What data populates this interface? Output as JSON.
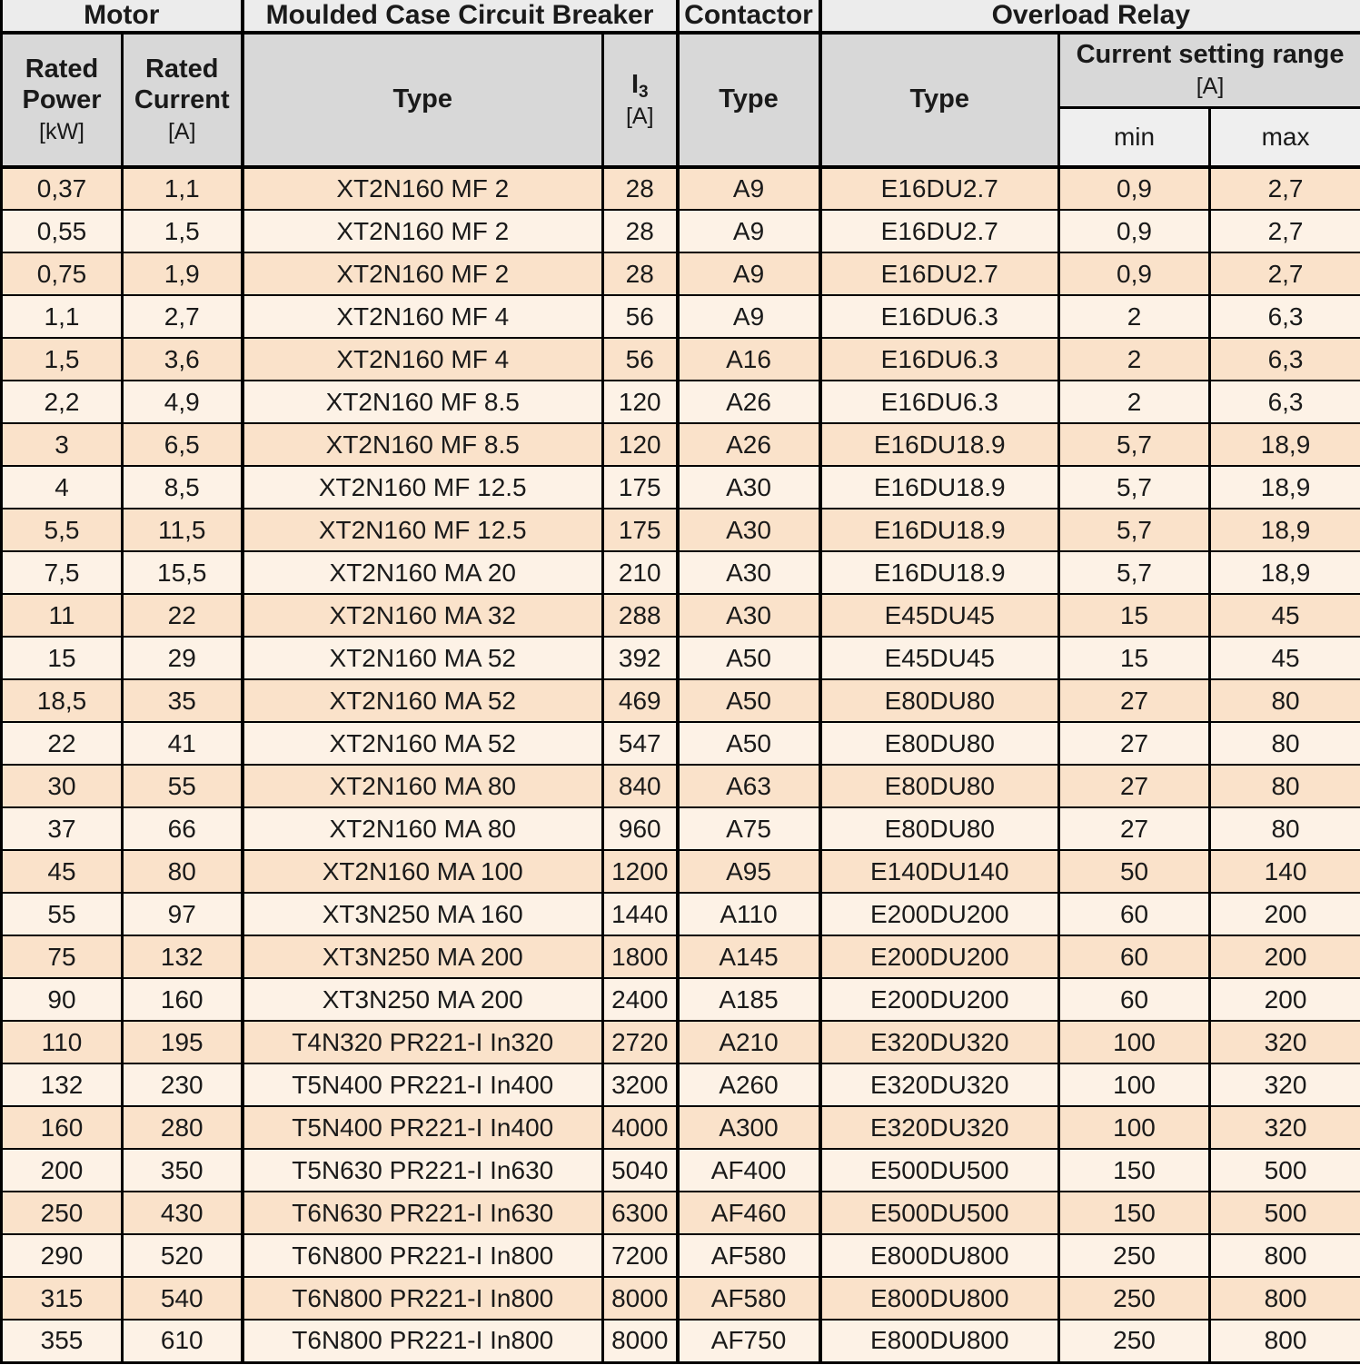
{
  "header": {
    "groups": [
      {
        "label": "Motor"
      },
      {
        "label": "Moulded Case Circuit Breaker"
      },
      {
        "label": "Contactor"
      },
      {
        "label": "Overload Relay"
      }
    ],
    "columns": {
      "rated_power": {
        "title": "Rated Power",
        "unit": "[kW]"
      },
      "rated_current": {
        "title": "Rated Current",
        "unit": "[A]"
      },
      "mccb_type": {
        "title": "Type"
      },
      "i3": {
        "symbol": "I",
        "sub": "3",
        "unit": "[A]"
      },
      "contactor_type": {
        "title": "Type"
      },
      "relay_type": {
        "title": "Type"
      },
      "current_setting": {
        "title": "Current setting range",
        "unit": "[A]",
        "min": "min",
        "max": "max"
      }
    }
  },
  "table": {
    "rows": [
      [
        "0,37",
        "1,1",
        "XT2N160 MF 2",
        "28",
        "A9",
        "E16DU2.7",
        "0,9",
        "2,7"
      ],
      [
        "0,55",
        "1,5",
        "XT2N160 MF 2",
        "28",
        "A9",
        "E16DU2.7",
        "0,9",
        "2,7"
      ],
      [
        "0,75",
        "1,9",
        "XT2N160 MF 2",
        "28",
        "A9",
        "E16DU2.7",
        "0,9",
        "2,7"
      ],
      [
        "1,1",
        "2,7",
        "XT2N160 MF 4",
        "56",
        "A9",
        "E16DU6.3",
        "2",
        "6,3"
      ],
      [
        "1,5",
        "3,6",
        "XT2N160 MF 4",
        "56",
        "A16",
        "E16DU6.3",
        "2",
        "6,3"
      ],
      [
        "2,2",
        "4,9",
        "XT2N160 MF 8.5",
        "120",
        "A26",
        "E16DU6.3",
        "2",
        "6,3"
      ],
      [
        "3",
        "6,5",
        "XT2N160 MF 8.5",
        "120",
        "A26",
        "E16DU18.9",
        "5,7",
        "18,9"
      ],
      [
        "4",
        "8,5",
        "XT2N160 MF 12.5",
        "175",
        "A30",
        "E16DU18.9",
        "5,7",
        "18,9"
      ],
      [
        "5,5",
        "11,5",
        "XT2N160 MF 12.5",
        "175",
        "A30",
        "E16DU18.9",
        "5,7",
        "18,9"
      ],
      [
        "7,5",
        "15,5",
        "XT2N160 MA 20",
        "210",
        "A30",
        "E16DU18.9",
        "5,7",
        "18,9"
      ],
      [
        "11",
        "22",
        "XT2N160 MA 32",
        "288",
        "A30",
        "E45DU45",
        "15",
        "45"
      ],
      [
        "15",
        "29",
        "XT2N160 MA 52",
        "392",
        "A50",
        "E45DU45",
        "15",
        "45"
      ],
      [
        "18,5",
        "35",
        "XT2N160 MA 52",
        "469",
        "A50",
        "E80DU80",
        "27",
        "80"
      ],
      [
        "22",
        "41",
        "XT2N160 MA 52",
        "547",
        "A50",
        "E80DU80",
        "27",
        "80"
      ],
      [
        "30",
        "55",
        "XT2N160 MA 80",
        "840",
        "A63",
        "E80DU80",
        "27",
        "80"
      ],
      [
        "37",
        "66",
        "XT2N160 MA 80",
        "960",
        "A75",
        "E80DU80",
        "27",
        "80"
      ],
      [
        "45",
        "80",
        "XT2N160 MA 100",
        "1200",
        "A95",
        "E140DU140",
        "50",
        "140"
      ],
      [
        "55",
        "97",
        "XT3N250 MA 160",
        "1440",
        "A110",
        "E200DU200",
        "60",
        "200"
      ],
      [
        "75",
        "132",
        "XT3N250 MA 200",
        "1800",
        "A145",
        "E200DU200",
        "60",
        "200"
      ],
      [
        "90",
        "160",
        "XT3N250 MA 200",
        "2400",
        "A185",
        "E200DU200",
        "60",
        "200"
      ],
      [
        "110",
        "195",
        "T4N320 PR221-I In320",
        "2720",
        "A210",
        "E320DU320",
        "100",
        "320"
      ],
      [
        "132",
        "230",
        "T5N400 PR221-I In400",
        "3200",
        "A260",
        "E320DU320",
        "100",
        "320"
      ],
      [
        "160",
        "280",
        "T5N400 PR221-I In400",
        "4000",
        "A300",
        "E320DU320",
        "100",
        "320"
      ],
      [
        "200",
        "350",
        "T5N630 PR221-I In630",
        "5040",
        "AF400",
        "E500DU500",
        "150",
        "500"
      ],
      [
        "250",
        "430",
        "T6N630 PR221-I In630",
        "6300",
        "AF460",
        "E500DU500",
        "150",
        "500"
      ],
      [
        "290",
        "520",
        "T6N800 PR221-I In800",
        "7200",
        "AF580",
        "E800DU800",
        "250",
        "800"
      ],
      [
        "315",
        "540",
        "T6N800 PR221-I In800",
        "8000",
        "AF580",
        "E800DU800",
        "250",
        "800"
      ],
      [
        "355",
        "610",
        "T6N800 PR221-I In800",
        "8000",
        "AF750",
        "E800DU800",
        "250",
        "800"
      ]
    ]
  },
  "colors": {
    "header_band": "#ECECEC",
    "header_sub": "#D8D8D8",
    "header_minmax": "#EFEFEF",
    "row_odd": "#FAE2CA",
    "row_even": "#FDF2E6",
    "border": "#000000"
  }
}
